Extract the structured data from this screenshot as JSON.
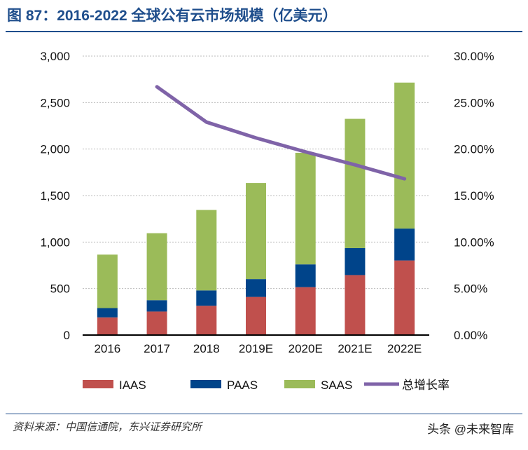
{
  "title": "图 87：2016-2022 全球公有云市场规模（亿美元）",
  "source": "资料来源：中国信通院，东兴证券研究所",
  "watermark": "头条 @未来智库",
  "chart_data": {
    "type": "bar",
    "stacked": true,
    "categories": [
      "2016",
      "2017",
      "2018",
      "2019E",
      "2020E",
      "2021E",
      "2022E"
    ],
    "series": [
      {
        "name": "IAAS",
        "type": "bar",
        "color": "#c0504d",
        "values": [
          190,
          253,
          315,
          410,
          515,
          645,
          802
        ]
      },
      {
        "name": "PAAS",
        "type": "bar",
        "color": "#00448a",
        "values": [
          100,
          122,
          165,
          192,
          245,
          290,
          343
        ]
      },
      {
        "name": "SAAS",
        "type": "bar",
        "color": "#9bbb59",
        "values": [
          575,
          720,
          865,
          1033,
          1200,
          1390,
          1570
        ]
      },
      {
        "name": "总增长率",
        "type": "line",
        "axis": "right",
        "color": "#7f63a8",
        "values": [
          null,
          26.7,
          22.9,
          21.2,
          19.7,
          18.3,
          16.8
        ]
      }
    ],
    "ylim": [
      0,
      3000
    ],
    "yticks": [
      "0",
      "500",
      "1,000",
      "1,500",
      "2,000",
      "2,500",
      "3,000"
    ],
    "y2lim": [
      0,
      30
    ],
    "y2ticks": [
      "0.00%",
      "5.00%",
      "10.00%",
      "15.00%",
      "20.00%",
      "25.00%",
      "30.00%"
    ],
    "grid": true,
    "legend": "bottom"
  }
}
